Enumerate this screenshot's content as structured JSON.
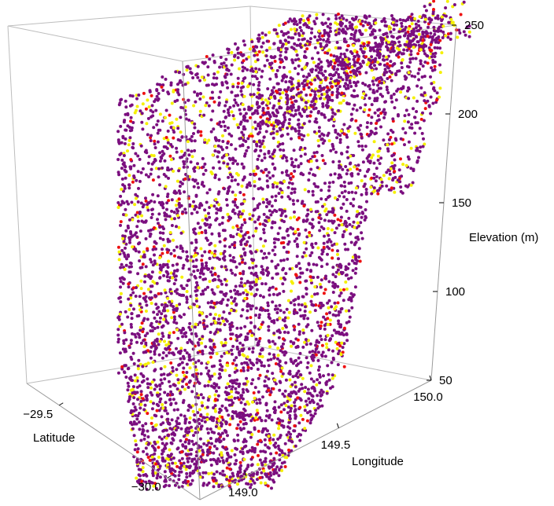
{
  "chart_data": {
    "type": "scatter",
    "title": "",
    "xlabel": "Longitude",
    "ylabel": "Latitude",
    "zlabel": "Elevation (m)",
    "xlim": [
      148.75,
      150.0
    ],
    "ylim": [
      -30.15,
      -29.35
    ],
    "zlim": [
      50,
      250
    ],
    "x_ticks": [
      {
        "value": 149.0,
        "label": "149.0"
      },
      {
        "value": 149.5,
        "label": "149.5"
      },
      {
        "value": 150.0,
        "label": "150.0"
      }
    ],
    "y_ticks": [
      {
        "value": -29.5,
        "label": "−29.5"
      },
      {
        "value": -30.0,
        "label": "−30.0"
      }
    ],
    "z_ticks": [
      {
        "value": 50,
        "label": "50"
      },
      {
        "value": 100,
        "label": "100"
      },
      {
        "value": 150,
        "label": "150"
      },
      {
        "value": 200,
        "label": "200"
      },
      {
        "value": 250,
        "label": "250"
      }
    ],
    "point_colors": [
      "#7b0f7f",
      "#f5f000",
      "#ee1111"
    ],
    "grid": false,
    "legend": "none"
  }
}
